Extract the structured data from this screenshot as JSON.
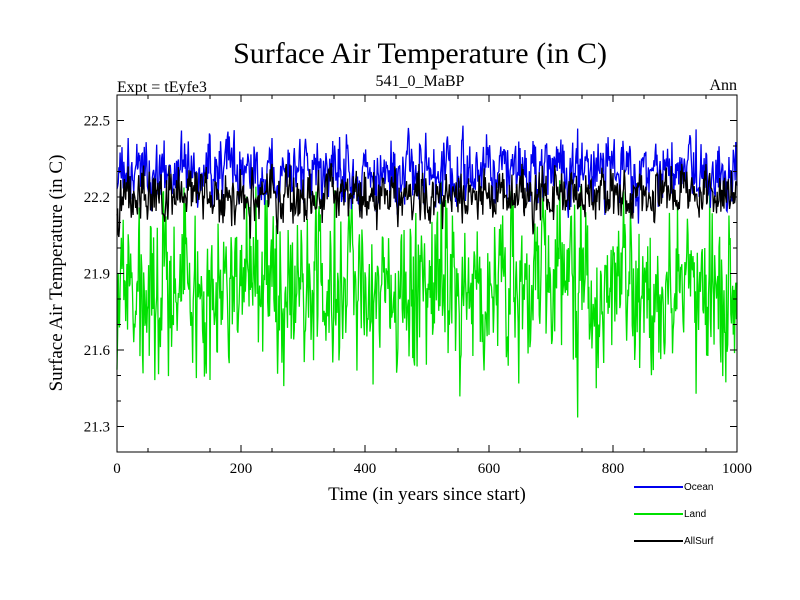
{
  "chart_data": {
    "type": "line",
    "title": "Surface Air Temperature (in C)",
    "subtitle_left": "Expt = tEyfe3",
    "subtitle_center": "541_0_MaBP",
    "subtitle_right": "Ann",
    "xlabel": "Time (in years since start)",
    "ylabel": "Surface Air Temperature (in C)",
    "xlim": [
      0,
      1000
    ],
    "ylim": [
      21.2,
      22.6
    ],
    "xticks": [
      0,
      200,
      400,
      600,
      800,
      1000
    ],
    "xtick_labels": [
      "0",
      "200",
      "400",
      "600",
      "800",
      "1000"
    ],
    "yticks": [
      21.3,
      21.6,
      21.9,
      22.2,
      22.5
    ],
    "ytick_labels": [
      "21.3",
      "21.6",
      "21.9",
      "22.2",
      "22.5"
    ],
    "grid": false,
    "legend_position": "bottom-right",
    "series": [
      {
        "name": "Land",
        "color": "#00e000",
        "mean": 21.84,
        "amplitude": 0.15,
        "min": 21.26,
        "max": 22.27,
        "seed": 7
      },
      {
        "name": "Ocean",
        "color": "#0000ee",
        "mean": 22.3,
        "amplitude": 0.06,
        "min": 22.03,
        "max": 22.49,
        "seed": 3
      },
      {
        "name": "AllSurf",
        "color": "#000000",
        "mean": 22.21,
        "amplitude": 0.05,
        "min": 21.92,
        "max": 22.33,
        "seed": 5
      }
    ],
    "legend": [
      {
        "label": "Ocean",
        "color": "#0000ee"
      },
      {
        "label": "Land",
        "color": "#00e000"
      },
      {
        "label": "AllSurf",
        "color": "#000000"
      }
    ]
  }
}
